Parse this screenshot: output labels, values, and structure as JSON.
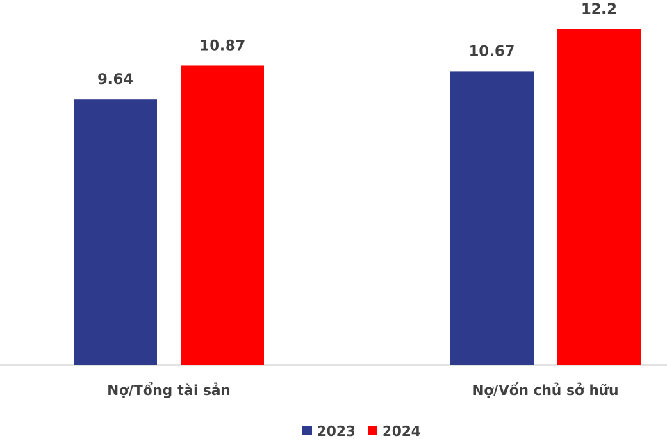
{
  "chart_data": {
    "type": "bar",
    "categories": [
      "Nợ/Tổng tài sản",
      "Nợ/Vốn chủ sở hữu"
    ],
    "series": [
      {
        "name": "2023",
        "values": [
          9.64,
          10.67
        ],
        "labels": [
          "9.64",
          "10.67"
        ],
        "color": "#2e3a8c"
      },
      {
        "name": "2024",
        "values": [
          10.87,
          12.2
        ],
        "labels": [
          "10.87",
          "12.2"
        ],
        "color": "#ff0000"
      }
    ],
    "ylim": [
      0,
      12.7
    ],
    "grid": false,
    "legend_position": "bottom-center",
    "baseline_color": "#d9d9d9"
  }
}
